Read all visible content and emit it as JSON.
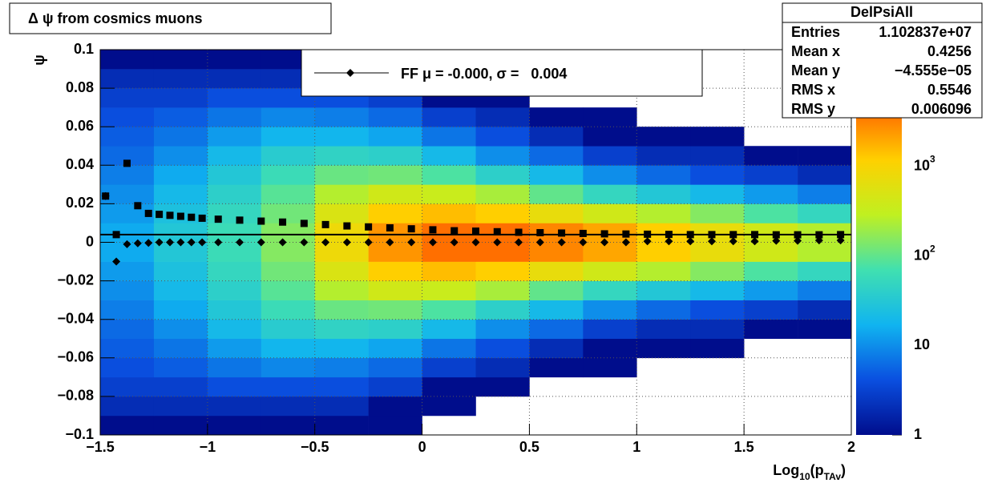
{
  "chart_data": {
    "type": "heatmap",
    "title": "Δ ψ from cosmics muons",
    "y_label": "ψ",
    "x_label": {
      "base": "Log",
      "sub": "10",
      "mid": "(p",
      "sub2": "TAv",
      "end": ")"
    },
    "xlim": [
      -1.5,
      2
    ],
    "ylim": [
      -0.1,
      0.1
    ],
    "xticks": [
      {
        "value": -1.5,
        "label": "−1.5"
      },
      {
        "value": -1,
        "label": "−1"
      },
      {
        "value": -0.5,
        "label": "−0.5"
      },
      0,
      0.5,
      1,
      1.5,
      2
    ],
    "yticks": [
      {
        "value": -0.1,
        "label": "−0.1"
      },
      {
        "value": -0.08,
        "label": "−0.08"
      },
      {
        "value": -0.06,
        "label": "−0.06"
      },
      {
        "value": -0.04,
        "label": "−0.04"
      },
      {
        "value": -0.02,
        "label": "−0.02"
      },
      0,
      0.02,
      0.04,
      0.06,
      0.08,
      0.1
    ],
    "grid": true,
    "zlim": [
      1,
      20000
    ],
    "zlog": true,
    "zticks": [
      1,
      10,
      {
        "value": 100,
        "label": "10",
        "exponent": "2"
      },
      {
        "value": 1000,
        "label": "10",
        "exponent": "3"
      }
    ],
    "palette": [
      "#000d8c",
      "#0a4fe0",
      "#10b4f0",
      "#40e0b0",
      "#c0f020",
      "#ffd000",
      "#ff6000",
      "#e00000"
    ],
    "x_bins": [
      -1.5,
      -1.25,
      -1,
      -0.75,
      -0.5,
      -0.25,
      0,
      0.25,
      0.5,
      0.75,
      1,
      1.25,
      1.5,
      1.75,
      2
    ],
    "y_bins": [
      -0.1,
      -0.09,
      -0.08,
      -0.07,
      -0.06,
      -0.05,
      -0.04,
      -0.03,
      -0.02,
      -0.01,
      0,
      0.01,
      0.02,
      0.03,
      0.04,
      0.05,
      0.06,
      0.07,
      0.08,
      0.09,
      0.1
    ],
    "counts": [
      [
        1,
        1,
        1,
        1,
        1,
        1,
        0,
        0,
        0,
        0,
        0,
        0,
        0,
        0
      ],
      [
        2,
        2,
        2,
        2,
        2,
        1,
        1,
        0,
        0,
        0,
        0,
        0,
        0,
        0
      ],
      [
        3,
        3,
        4,
        4,
        4,
        3,
        1,
        1,
        0,
        0,
        0,
        0,
        0,
        0
      ],
      [
        4,
        5,
        7,
        9,
        8,
        6,
        3,
        2,
        1,
        1,
        0,
        0,
        0,
        0
      ],
      [
        5,
        7,
        12,
        18,
        18,
        14,
        7,
        4,
        2,
        1,
        1,
        1,
        0,
        0
      ],
      [
        6,
        10,
        20,
        35,
        45,
        40,
        20,
        10,
        6,
        3,
        2,
        2,
        1,
        1
      ],
      [
        8,
        15,
        30,
        60,
        110,
        120,
        80,
        40,
        20,
        10,
        6,
        4,
        3,
        2
      ],
      [
        10,
        20,
        40,
        90,
        250,
        400,
        350,
        220,
        100,
        50,
        30,
        20,
        12,
        8
      ],
      [
        12,
        25,
        50,
        120,
        500,
        1200,
        1500,
        1200,
        700,
        400,
        250,
        150,
        80,
        50
      ],
      [
        15,
        30,
        60,
        150,
        800,
        2500,
        4000,
        4000,
        3000,
        2000,
        1200,
        700,
        400,
        250
      ],
      [
        15,
        30,
        60,
        150,
        800,
        2500,
        4000,
        4000,
        3000,
        2000,
        1200,
        700,
        400,
        250
      ],
      [
        12,
        25,
        50,
        120,
        500,
        1200,
        1500,
        1200,
        700,
        400,
        250,
        150,
        80,
        50
      ],
      [
        10,
        20,
        40,
        90,
        250,
        400,
        350,
        220,
        100,
        50,
        30,
        20,
        12,
        8
      ],
      [
        8,
        15,
        30,
        60,
        110,
        120,
        80,
        40,
        20,
        10,
        6,
        4,
        3,
        2
      ],
      [
        6,
        10,
        20,
        35,
        45,
        40,
        20,
        10,
        6,
        3,
        2,
        2,
        1,
        1
      ],
      [
        5,
        7,
        12,
        18,
        18,
        14,
        7,
        4,
        2,
        1,
        1,
        1,
        0,
        0
      ],
      [
        4,
        5,
        7,
        9,
        8,
        6,
        3,
        2,
        1,
        1,
        0,
        0,
        0,
        0
      ],
      [
        3,
        3,
        4,
        4,
        4,
        3,
        1,
        1,
        0,
        0,
        0,
        0,
        0,
        0
      ],
      [
        2,
        2,
        2,
        2,
        2,
        1,
        1,
        0,
        0,
        0,
        0,
        0,
        0,
        0
      ],
      [
        1,
        1,
        1,
        1,
        1,
        1,
        0,
        0,
        0,
        0,
        0,
        0,
        0,
        0
      ]
    ],
    "x": [
      -1.475,
      -1.425,
      -1.375,
      -1.325,
      -1.275,
      -1.225,
      -1.175,
      -1.125,
      -1.075,
      -1.025,
      -0.95,
      -0.85,
      -0.75,
      -0.65,
      -0.55,
      -0.45,
      -0.35,
      -0.25,
      -0.15,
      -0.05,
      0.05,
      0.15,
      0.25,
      0.35,
      0.45,
      0.55,
      0.65,
      0.75,
      0.85,
      0.95,
      1.05,
      1.15,
      1.25,
      1.35,
      1.45,
      1.55,
      1.65,
      1.75,
      1.85,
      1.95
    ],
    "series": [
      {
        "marker": "square",
        "color": "#000000",
        "values": [
          0.024,
          0.004,
          0.041,
          0.019,
          0.015,
          0.0145,
          0.014,
          0.0135,
          0.013,
          0.0125,
          0.012,
          0.0115,
          0.011,
          0.0105,
          0.0098,
          0.0092,
          0.0085,
          0.008,
          0.0075,
          0.007,
          0.0065,
          0.006,
          0.0058,
          0.0055,
          0.0052,
          0.005,
          0.0048,
          0.0046,
          0.0044,
          0.0043,
          0.0042,
          0.0041,
          0.004,
          0.004,
          0.004,
          0.004,
          0.0039,
          0.0039,
          0.0039,
          0.004
        ]
      },
      {
        "name": "FF μ = -0.000, σ =   0.004",
        "marker": "diamond",
        "color": "#000000",
        "values": [
          0.024,
          -0.01,
          -0.001,
          -0.0005,
          -0.0003,
          0,
          0,
          0,
          0,
          0,
          0,
          0,
          0,
          0,
          0,
          0,
          0,
          0,
          0,
          0,
          0,
          0,
          0,
          0,
          0,
          0,
          0,
          0,
          0,
          0,
          0.0005,
          0.0005,
          0.0005,
          0.0005,
          0.0005,
          0.0005,
          0.0008,
          0.0008,
          0.001,
          0.001
        ]
      }
    ],
    "reference_line": {
      "y": 0.004,
      "color": "#000000"
    },
    "stats": {
      "title": "DelPsiAll",
      "rows": [
        [
          "Entries",
          "1.102837e+07"
        ],
        [
          "Mean x",
          "0.4256"
        ],
        [
          "Mean y",
          "−4.555e−05"
        ],
        [
          "RMS x",
          "0.5546"
        ],
        [
          "RMS y",
          "0.006096"
        ]
      ]
    }
  }
}
